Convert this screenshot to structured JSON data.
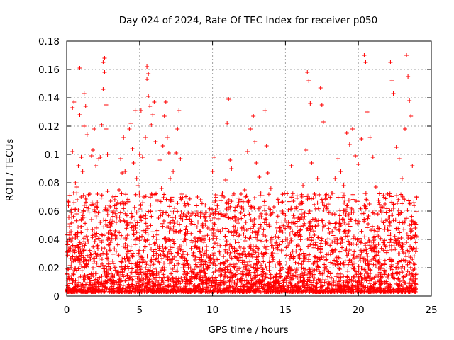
{
  "chart_data": {
    "type": "scatter",
    "title": "Day 024 of 2024, Rate Of TEC Index for receiver p050",
    "xlabel": "GPS time / hours",
    "ylabel": "ROTI / TECUs",
    "xlim": [
      0,
      25
    ],
    "ylim": [
      0,
      0.18
    ],
    "xticks": [
      0,
      5,
      10,
      15,
      20,
      25
    ],
    "yticks": [
      0,
      0.02,
      0.04,
      0.06,
      0.08,
      0.1,
      0.12,
      0.14,
      0.16,
      0.18
    ],
    "xtick_labels": [
      "0",
      "5",
      "10",
      "15",
      "20",
      "25"
    ],
    "ytick_labels": [
      "0",
      "0.02",
      "0.04",
      "0.06",
      "0.08",
      "0.1",
      "0.12",
      "0.14",
      "0.16",
      "0.18"
    ],
    "grid": true,
    "marker": "+",
    "color": "#ff0000",
    "data_extent_hours": [
      0,
      24
    ],
    "series": [
      {
        "name": "ROTI",
        "points": [
          [
            0.1,
            0.006
          ],
          [
            0.1,
            0.032
          ],
          [
            0.2,
            0.045
          ],
          [
            0.2,
            0.049
          ],
          [
            0.3,
            0.02
          ],
          [
            0.3,
            0.039
          ],
          [
            0.4,
            0.102
          ],
          [
            0.4,
            0.133
          ],
          [
            0.5,
            0.137
          ],
          [
            0.5,
            0.066
          ],
          [
            0.6,
            0.041
          ],
          [
            0.6,
            0.08
          ],
          [
            0.7,
            0.077
          ],
          [
            0.7,
            0.058
          ],
          [
            0.8,
            0.035
          ],
          [
            0.8,
            0.092
          ],
          [
            0.9,
            0.128
          ],
          [
            0.9,
            0.161
          ],
          [
            1.0,
            0.098
          ],
          [
            1.0,
            0.03
          ],
          [
            1.1,
            0.055
          ],
          [
            1.1,
            0.088
          ],
          [
            1.2,
            0.12
          ],
          [
            1.2,
            0.143
          ],
          [
            1.3,
            0.134
          ],
          [
            1.3,
            0.069
          ],
          [
            1.4,
            0.114
          ],
          [
            1.4,
            0.047
          ],
          [
            1.5,
            0.025
          ],
          [
            1.5,
            0.062
          ],
          [
            1.6,
            0.072
          ],
          [
            1.7,
            0.099
          ],
          [
            1.7,
            0.054
          ],
          [
            1.8,
            0.103
          ],
          [
            1.9,
            0.118
          ],
          [
            1.9,
            0.061
          ],
          [
            2.0,
            0.092
          ],
          [
            2.0,
            0.04
          ],
          [
            2.1,
            0.066
          ],
          [
            2.2,
            0.097
          ],
          [
            2.3,
            0.098
          ],
          [
            2.3,
            0.052
          ],
          [
            2.4,
            0.121
          ],
          [
            2.5,
            0.146
          ],
          [
            2.5,
            0.165
          ],
          [
            2.6,
            0.168
          ],
          [
            2.6,
            0.158
          ],
          [
            2.7,
            0.135
          ],
          [
            2.7,
            0.118
          ],
          [
            2.8,
            0.1
          ],
          [
            2.8,
            0.074
          ],
          [
            2.9,
            0.064
          ],
          [
            3.0,
            0.051
          ],
          [
            3.0,
            0.067
          ],
          [
            3.1,
            0.044
          ],
          [
            3.2,
            0.06
          ],
          [
            3.3,
            0.068
          ],
          [
            3.4,
            0.052
          ],
          [
            3.5,
            0.066
          ],
          [
            3.6,
            0.075
          ],
          [
            3.7,
            0.097
          ],
          [
            3.8,
            0.087
          ],
          [
            3.9,
            0.112
          ],
          [
            4.0,
            0.088
          ],
          [
            4.1,
            0.052
          ],
          [
            4.2,
            0.066
          ],
          [
            4.3,
            0.118
          ],
          [
            4.4,
            0.122
          ],
          [
            4.5,
            0.104
          ],
          [
            4.6,
            0.094
          ],
          [
            4.7,
            0.131
          ],
          [
            4.8,
            0.083
          ],
          [
            4.9,
            0.078
          ],
          [
            5.0,
            0.1
          ],
          [
            5.1,
            0.131
          ],
          [
            5.2,
            0.098
          ],
          [
            5.3,
            0.07
          ],
          [
            5.4,
            0.112
          ],
          [
            5.5,
            0.153
          ],
          [
            5.5,
            0.162
          ],
          [
            5.6,
            0.157
          ],
          [
            5.6,
            0.141
          ],
          [
            5.7,
            0.134
          ],
          [
            5.8,
            0.121
          ],
          [
            5.9,
            0.128
          ],
          [
            6.0,
            0.137
          ],
          [
            6.1,
            0.109
          ],
          [
            6.2,
            0.068
          ],
          [
            6.3,
            0.055
          ],
          [
            6.4,
            0.096
          ],
          [
            6.5,
            0.076
          ],
          [
            6.6,
            0.106
          ],
          [
            6.7,
            0.127
          ],
          [
            6.8,
            0.137
          ],
          [
            6.9,
            0.112
          ],
          [
            7.0,
            0.101
          ],
          [
            7.1,
            0.083
          ],
          [
            7.2,
            0.068
          ],
          [
            7.3,
            0.088
          ],
          [
            7.4,
            0.062
          ],
          [
            7.5,
            0.101
          ],
          [
            7.6,
            0.118
          ],
          [
            7.7,
            0.131
          ],
          [
            7.8,
            0.097
          ],
          [
            7.9,
            0.072
          ],
          [
            8.0,
            0.058
          ],
          [
            8.2,
            0.049
          ],
          [
            8.4,
            0.056
          ],
          [
            8.6,
            0.038
          ],
          [
            8.8,
            0.041
          ],
          [
            9.0,
            0.034
          ],
          [
            9.2,
            0.031
          ],
          [
            9.4,
            0.038
          ],
          [
            9.6,
            0.032
          ],
          [
            9.8,
            0.04
          ],
          [
            10.0,
            0.088
          ],
          [
            10.1,
            0.098
          ],
          [
            10.2,
            0.058
          ],
          [
            10.4,
            0.046
          ],
          [
            10.6,
            0.058
          ],
          [
            10.8,
            0.07
          ],
          [
            10.9,
            0.082
          ],
          [
            11.0,
            0.122
          ],
          [
            11.1,
            0.139
          ],
          [
            11.2,
            0.096
          ],
          [
            11.3,
            0.09
          ],
          [
            11.4,
            0.071
          ],
          [
            11.6,
            0.055
          ],
          [
            11.8,
            0.066
          ],
          [
            12.0,
            0.062
          ],
          [
            12.2,
            0.075
          ],
          [
            12.4,
            0.102
          ],
          [
            12.6,
            0.118
          ],
          [
            12.8,
            0.127
          ],
          [
            12.9,
            0.109
          ],
          [
            13.0,
            0.094
          ],
          [
            13.2,
            0.084
          ],
          [
            13.4,
            0.071
          ],
          [
            13.6,
            0.131
          ],
          [
            13.7,
            0.106
          ],
          [
            13.8,
            0.087
          ],
          [
            14.0,
            0.076
          ],
          [
            14.2,
            0.063
          ],
          [
            14.4,
            0.052
          ],
          [
            14.6,
            0.048
          ],
          [
            14.8,
            0.06
          ],
          [
            15.0,
            0.057
          ],
          [
            15.2,
            0.061
          ],
          [
            15.4,
            0.092
          ],
          [
            15.6,
            0.055
          ],
          [
            15.8,
            0.049
          ],
          [
            16.0,
            0.065
          ],
          [
            16.2,
            0.078
          ],
          [
            16.4,
            0.103
          ],
          [
            16.5,
            0.158
          ],
          [
            16.6,
            0.152
          ],
          [
            16.7,
            0.136
          ],
          [
            16.8,
            0.094
          ],
          [
            17.0,
            0.072
          ],
          [
            17.2,
            0.083
          ],
          [
            17.4,
            0.147
          ],
          [
            17.5,
            0.135
          ],
          [
            17.6,
            0.123
          ],
          [
            17.8,
            0.069
          ],
          [
            18.0,
            0.052
          ],
          [
            18.2,
            0.058
          ],
          [
            18.4,
            0.083
          ],
          [
            18.6,
            0.097
          ],
          [
            18.8,
            0.088
          ],
          [
            19.0,
            0.078
          ],
          [
            19.2,
            0.115
          ],
          [
            19.4,
            0.107
          ],
          [
            19.6,
            0.118
          ],
          [
            19.8,
            0.099
          ],
          [
            20.0,
            0.093
          ],
          [
            20.2,
            0.111
          ],
          [
            20.4,
            0.17
          ],
          [
            20.5,
            0.165
          ],
          [
            20.6,
            0.13
          ],
          [
            20.8,
            0.112
          ],
          [
            21.0,
            0.098
          ],
          [
            21.2,
            0.077
          ],
          [
            21.4,
            0.066
          ],
          [
            21.6,
            0.059
          ],
          [
            21.8,
            0.047
          ],
          [
            22.0,
            0.072
          ],
          [
            22.2,
            0.165
          ],
          [
            22.3,
            0.152
          ],
          [
            22.4,
            0.143
          ],
          [
            22.6,
            0.105
          ],
          [
            22.8,
            0.097
          ],
          [
            23.0,
            0.083
          ],
          [
            23.2,
            0.118
          ],
          [
            23.3,
            0.17
          ],
          [
            23.4,
            0.155
          ],
          [
            23.5,
            0.138
          ],
          [
            23.6,
            0.127
          ],
          [
            23.7,
            0.092
          ],
          [
            23.8,
            0.066
          ],
          [
            23.9,
            0.048
          ]
        ]
      }
    ]
  }
}
